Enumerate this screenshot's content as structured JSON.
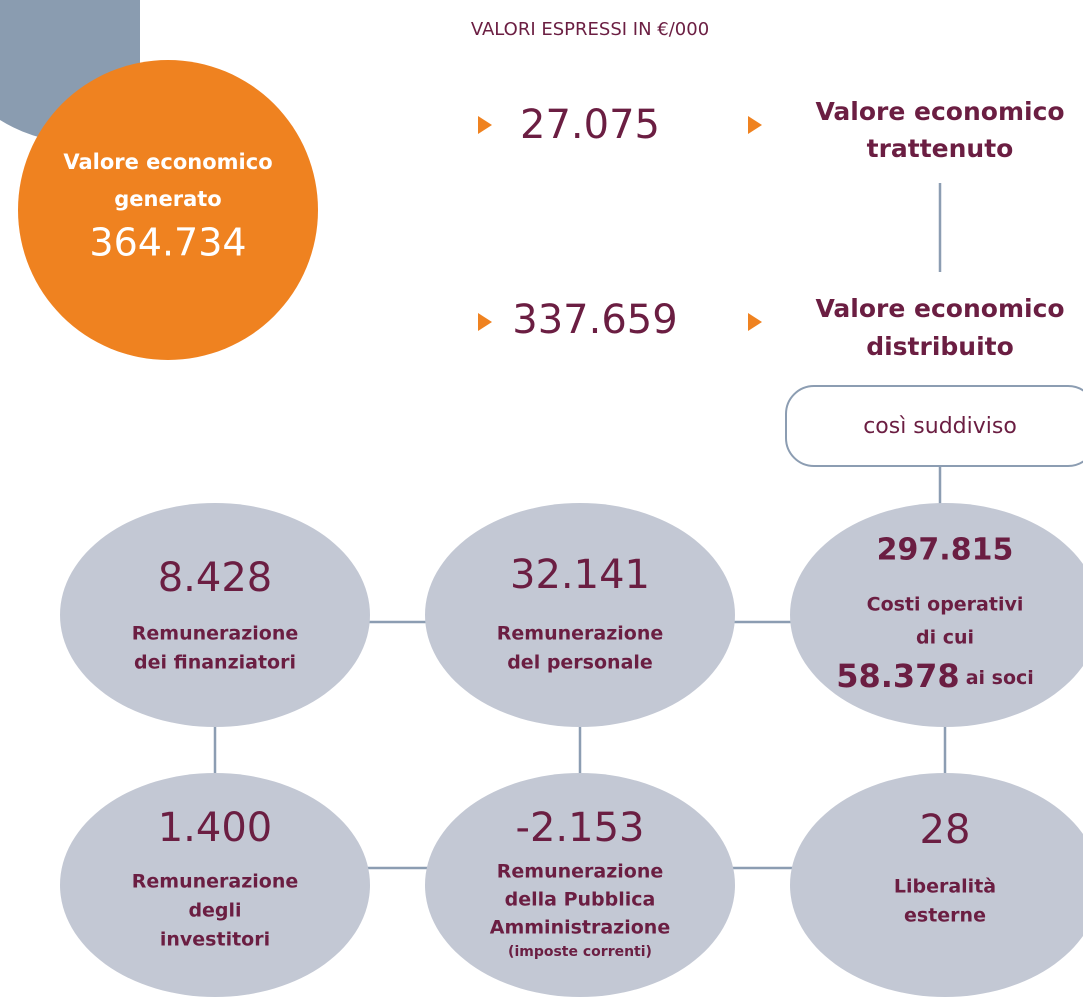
{
  "header": {
    "note": "VALORI ESPRESSI IN €/000"
  },
  "source": {
    "label_lines": [
      "Valore economico",
      "generato"
    ],
    "value": "364.734"
  },
  "flows": [
    {
      "value": "27.075",
      "label_lines": [
        "Valore economico",
        "trattenuto"
      ]
    },
    {
      "value": "337.659",
      "label_lines": [
        "Valore economico",
        "distribuito"
      ]
    }
  ],
  "split_label": "così suddiviso",
  "items": [
    {
      "value": "8.428",
      "label_lines": [
        "Remunerazione",
        "dei finanziatori"
      ]
    },
    {
      "value": "32.141",
      "label_lines": [
        "Remunerazione",
        "del personale"
      ]
    },
    {
      "value": "297.815",
      "label_lines": [
        "Costi operativi",
        "di cui"
      ],
      "sub_value": "58.378",
      "sub_label": "ai soci"
    },
    {
      "value": "1.400",
      "label_lines": [
        "Remunerazione",
        "degli",
        "investitori"
      ]
    },
    {
      "value": "-2.153",
      "label_lines": [
        "Remunerazione",
        "della Pubblica",
        "Amministrazione"
      ],
      "note": "(imposte correnti)"
    },
    {
      "value": "28",
      "label_lines": [
        "Liberalità",
        "esterne"
      ]
    }
  ]
}
